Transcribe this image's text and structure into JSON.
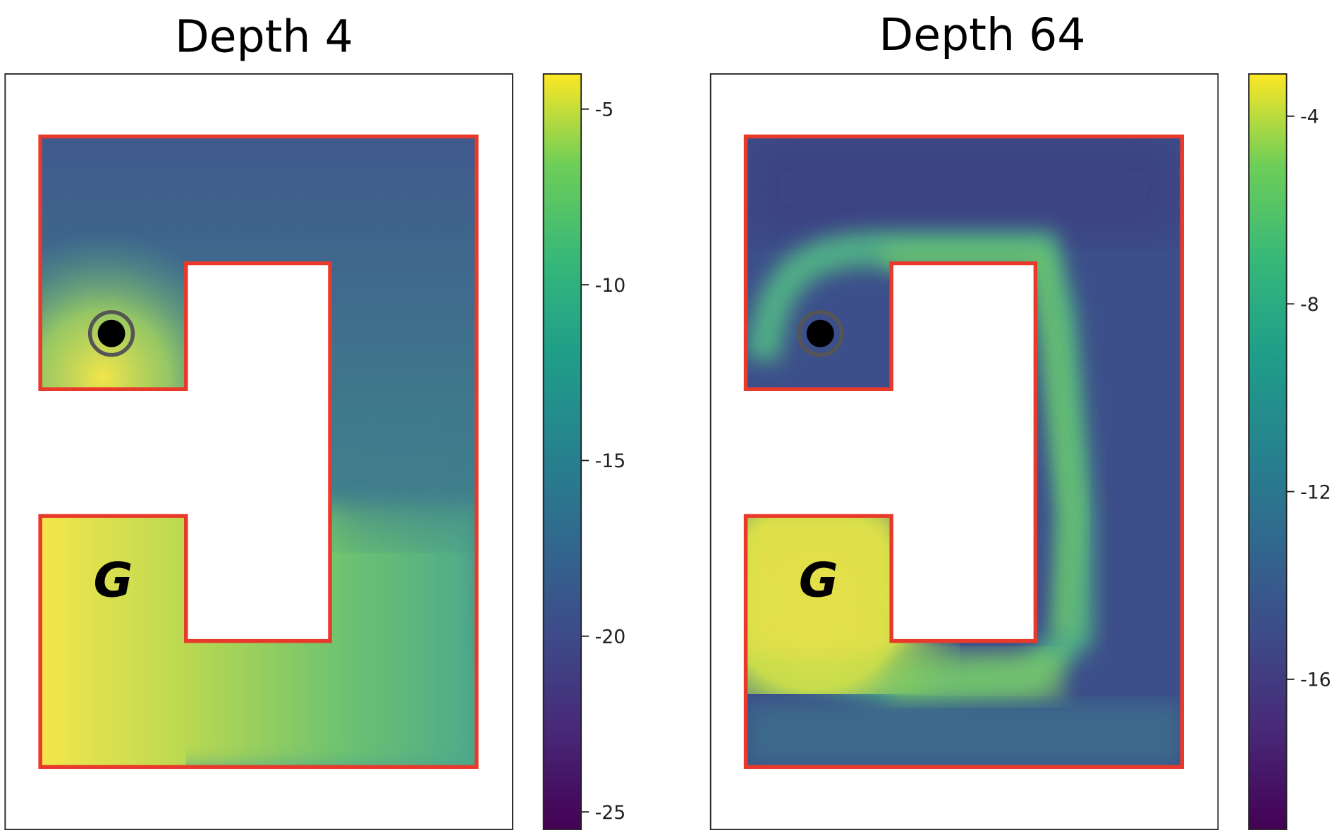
{
  "chart_data": [
    {
      "type": "heatmap",
      "title": "Depth 4",
      "colormap": "viridis",
      "colorbar": {
        "range": [
          -25.5,
          -4
        ],
        "ticks": [
          -5,
          -10,
          -15,
          -20,
          -25
        ],
        "tick_labels": [
          "-5",
          "-10",
          "-15",
          "-20",
          "-25"
        ]
      },
      "goal_label": "G",
      "agent_marker": "black-circle-with-gray-ring",
      "wall_color": "#e8392b"
    },
    {
      "type": "heatmap",
      "title": "Depth 64",
      "colormap": "viridis",
      "colorbar": {
        "range": [
          -19.2,
          -3.1
        ],
        "ticks": [
          -4,
          -8,
          -12,
          -16
        ],
        "tick_labels": [
          "-4",
          "-8",
          "-12",
          "-16"
        ]
      },
      "goal_label": "G",
      "agent_marker": "black-circle-with-gray-ring",
      "wall_color": "#e8392b"
    }
  ]
}
